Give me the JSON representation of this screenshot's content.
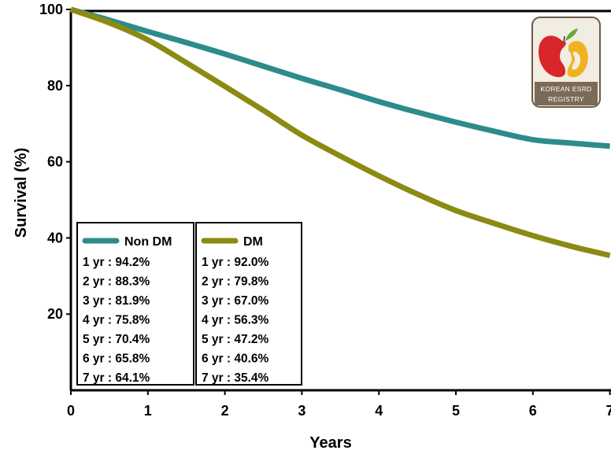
{
  "chart_data": {
    "type": "line",
    "title": "",
    "xlabel": "Years",
    "ylabel": "Survival (%)",
    "xlim": [
      0,
      7
    ],
    "ylim": [
      0,
      100
    ],
    "x_ticks": [
      "0",
      "1",
      "2",
      "3",
      "4",
      "5",
      "6",
      "7"
    ],
    "y_ticks": [
      "20",
      "40",
      "60",
      "80",
      "100"
    ],
    "grid": false,
    "legend_position": "bottom-left",
    "series": [
      {
        "name": "Non DM",
        "color": "#2E8B8B",
        "points": [
          [
            0,
            100
          ],
          [
            0.5,
            97.2
          ],
          [
            1,
            94.2
          ],
          [
            1.5,
            91.3
          ],
          [
            2,
            88.3
          ],
          [
            2.5,
            85.1
          ],
          [
            3,
            81.9
          ],
          [
            3.5,
            78.9
          ],
          [
            4,
            75.8
          ],
          [
            4.5,
            73.0
          ],
          [
            5,
            70.4
          ],
          [
            5.5,
            68.0
          ],
          [
            6,
            65.8
          ],
          [
            6.5,
            64.9
          ],
          [
            7,
            64.1
          ]
        ],
        "summary": [
          "1 yr : 94.2%",
          "2 yr : 88.3%",
          "3 yr : 81.9%",
          "4 yr : 75.8%",
          "5 yr : 70.4%",
          "6 yr : 65.8%",
          "7 yr : 64.1%"
        ]
      },
      {
        "name": "DM",
        "color": "#8B8A12",
        "points": [
          [
            0,
            100
          ],
          [
            0.5,
            96.5
          ],
          [
            1,
            92.0
          ],
          [
            1.5,
            86.0
          ],
          [
            2,
            79.8
          ],
          [
            2.5,
            73.5
          ],
          [
            3,
            67.0
          ],
          [
            3.5,
            61.5
          ],
          [
            4,
            56.3
          ],
          [
            4.5,
            51.5
          ],
          [
            5,
            47.2
          ],
          [
            5.5,
            43.8
          ],
          [
            6,
            40.6
          ],
          [
            6.5,
            37.8
          ],
          [
            7,
            35.4
          ]
        ],
        "summary": [
          "1 yr : 92.0%",
          "2 yr : 79.8%",
          "3 yr : 67.0%",
          "4 yr : 56.3%",
          "5 yr : 47.2%",
          "6 yr : 40.6%",
          "7 yr : 35.4%"
        ]
      }
    ]
  },
  "logo": {
    "icon": "kidney-logo-icon",
    "text": "KOREAN ESRD REGISTRY"
  }
}
